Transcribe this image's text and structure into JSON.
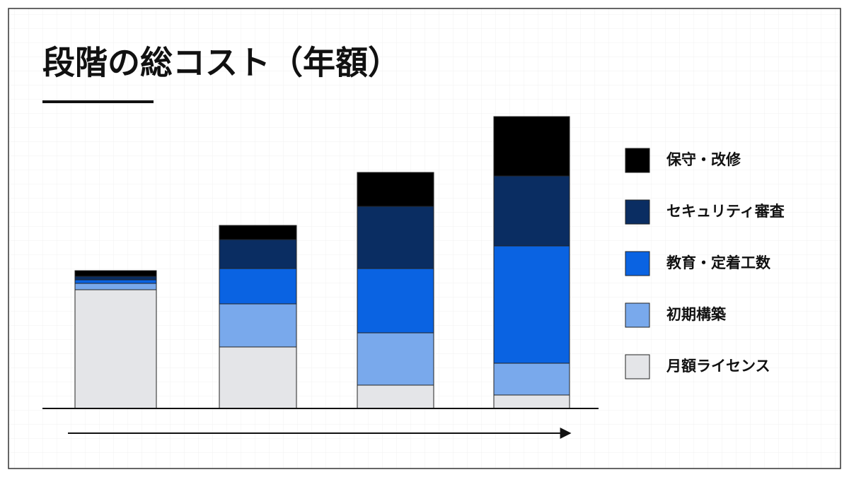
{
  "chart_data": {
    "type": "stacked-bar",
    "title": "段階の総コスト（年額）",
    "categories": [
      null,
      null,
      null,
      null
    ],
    "series": [
      {
        "name": "月額ライセンス",
        "color": "#e4e5e8",
        "values": [
          168,
          87,
          33,
          19
        ]
      },
      {
        "name": "初期構築",
        "color": "#79a9ec",
        "values": [
          9,
          61,
          74,
          45
        ]
      },
      {
        "name": "教育・定着工数",
        "color": "#0a63e2",
        "values": [
          5,
          50,
          91,
          166
        ]
      },
      {
        "name": "セキュリティ審査",
        "color": "#0a2d62",
        "values": [
          5,
          41,
          88,
          99
        ]
      },
      {
        "name": "保守・改修",
        "color": "#000000",
        "values": [
          8,
          20,
          48,
          84
        ]
      }
    ]
  }
}
